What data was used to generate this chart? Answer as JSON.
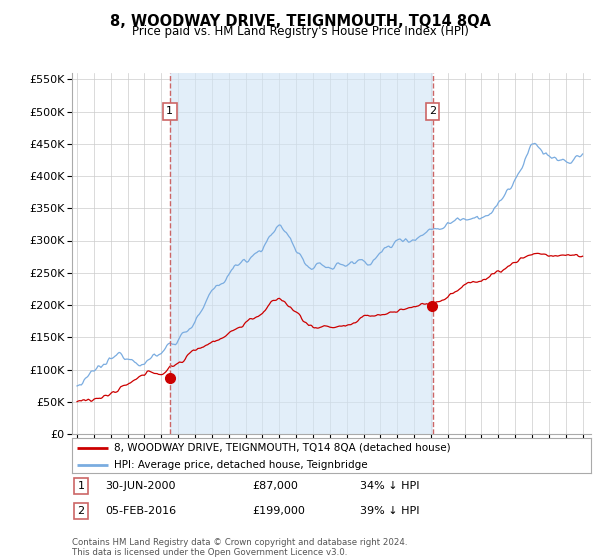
{
  "title": "8, WOODWAY DRIVE, TEIGNMOUTH, TQ14 8QA",
  "subtitle": "Price paid vs. HM Land Registry's House Price Index (HPI)",
  "legend_line1": "8, WOODWAY DRIVE, TEIGNMOUTH, TQ14 8QA (detached house)",
  "legend_line2": "HPI: Average price, detached house, Teignbridge",
  "sale1_label": "1",
  "sale1_date": "30-JUN-2000",
  "sale1_price": "£87,000",
  "sale1_hpi": "34% ↓ HPI",
  "sale1_year": 2000.5,
  "sale1_value": 87000,
  "sale2_label": "2",
  "sale2_date": "05-FEB-2016",
  "sale2_price": "£199,000",
  "sale2_hpi": "39% ↓ HPI",
  "sale2_year": 2016.1,
  "sale2_value": 199000,
  "red_color": "#cc0000",
  "blue_color": "#7aace0",
  "blue_fill": "#d0e4f5",
  "vline_color": "#cc6666",
  "background_color": "#ffffff",
  "grid_color": "#cccccc",
  "ylim": [
    0,
    560000
  ],
  "xlim": [
    1994.7,
    2025.5
  ],
  "footer": "Contains HM Land Registry data © Crown copyright and database right 2024.\nThis data is licensed under the Open Government Licence v3.0."
}
